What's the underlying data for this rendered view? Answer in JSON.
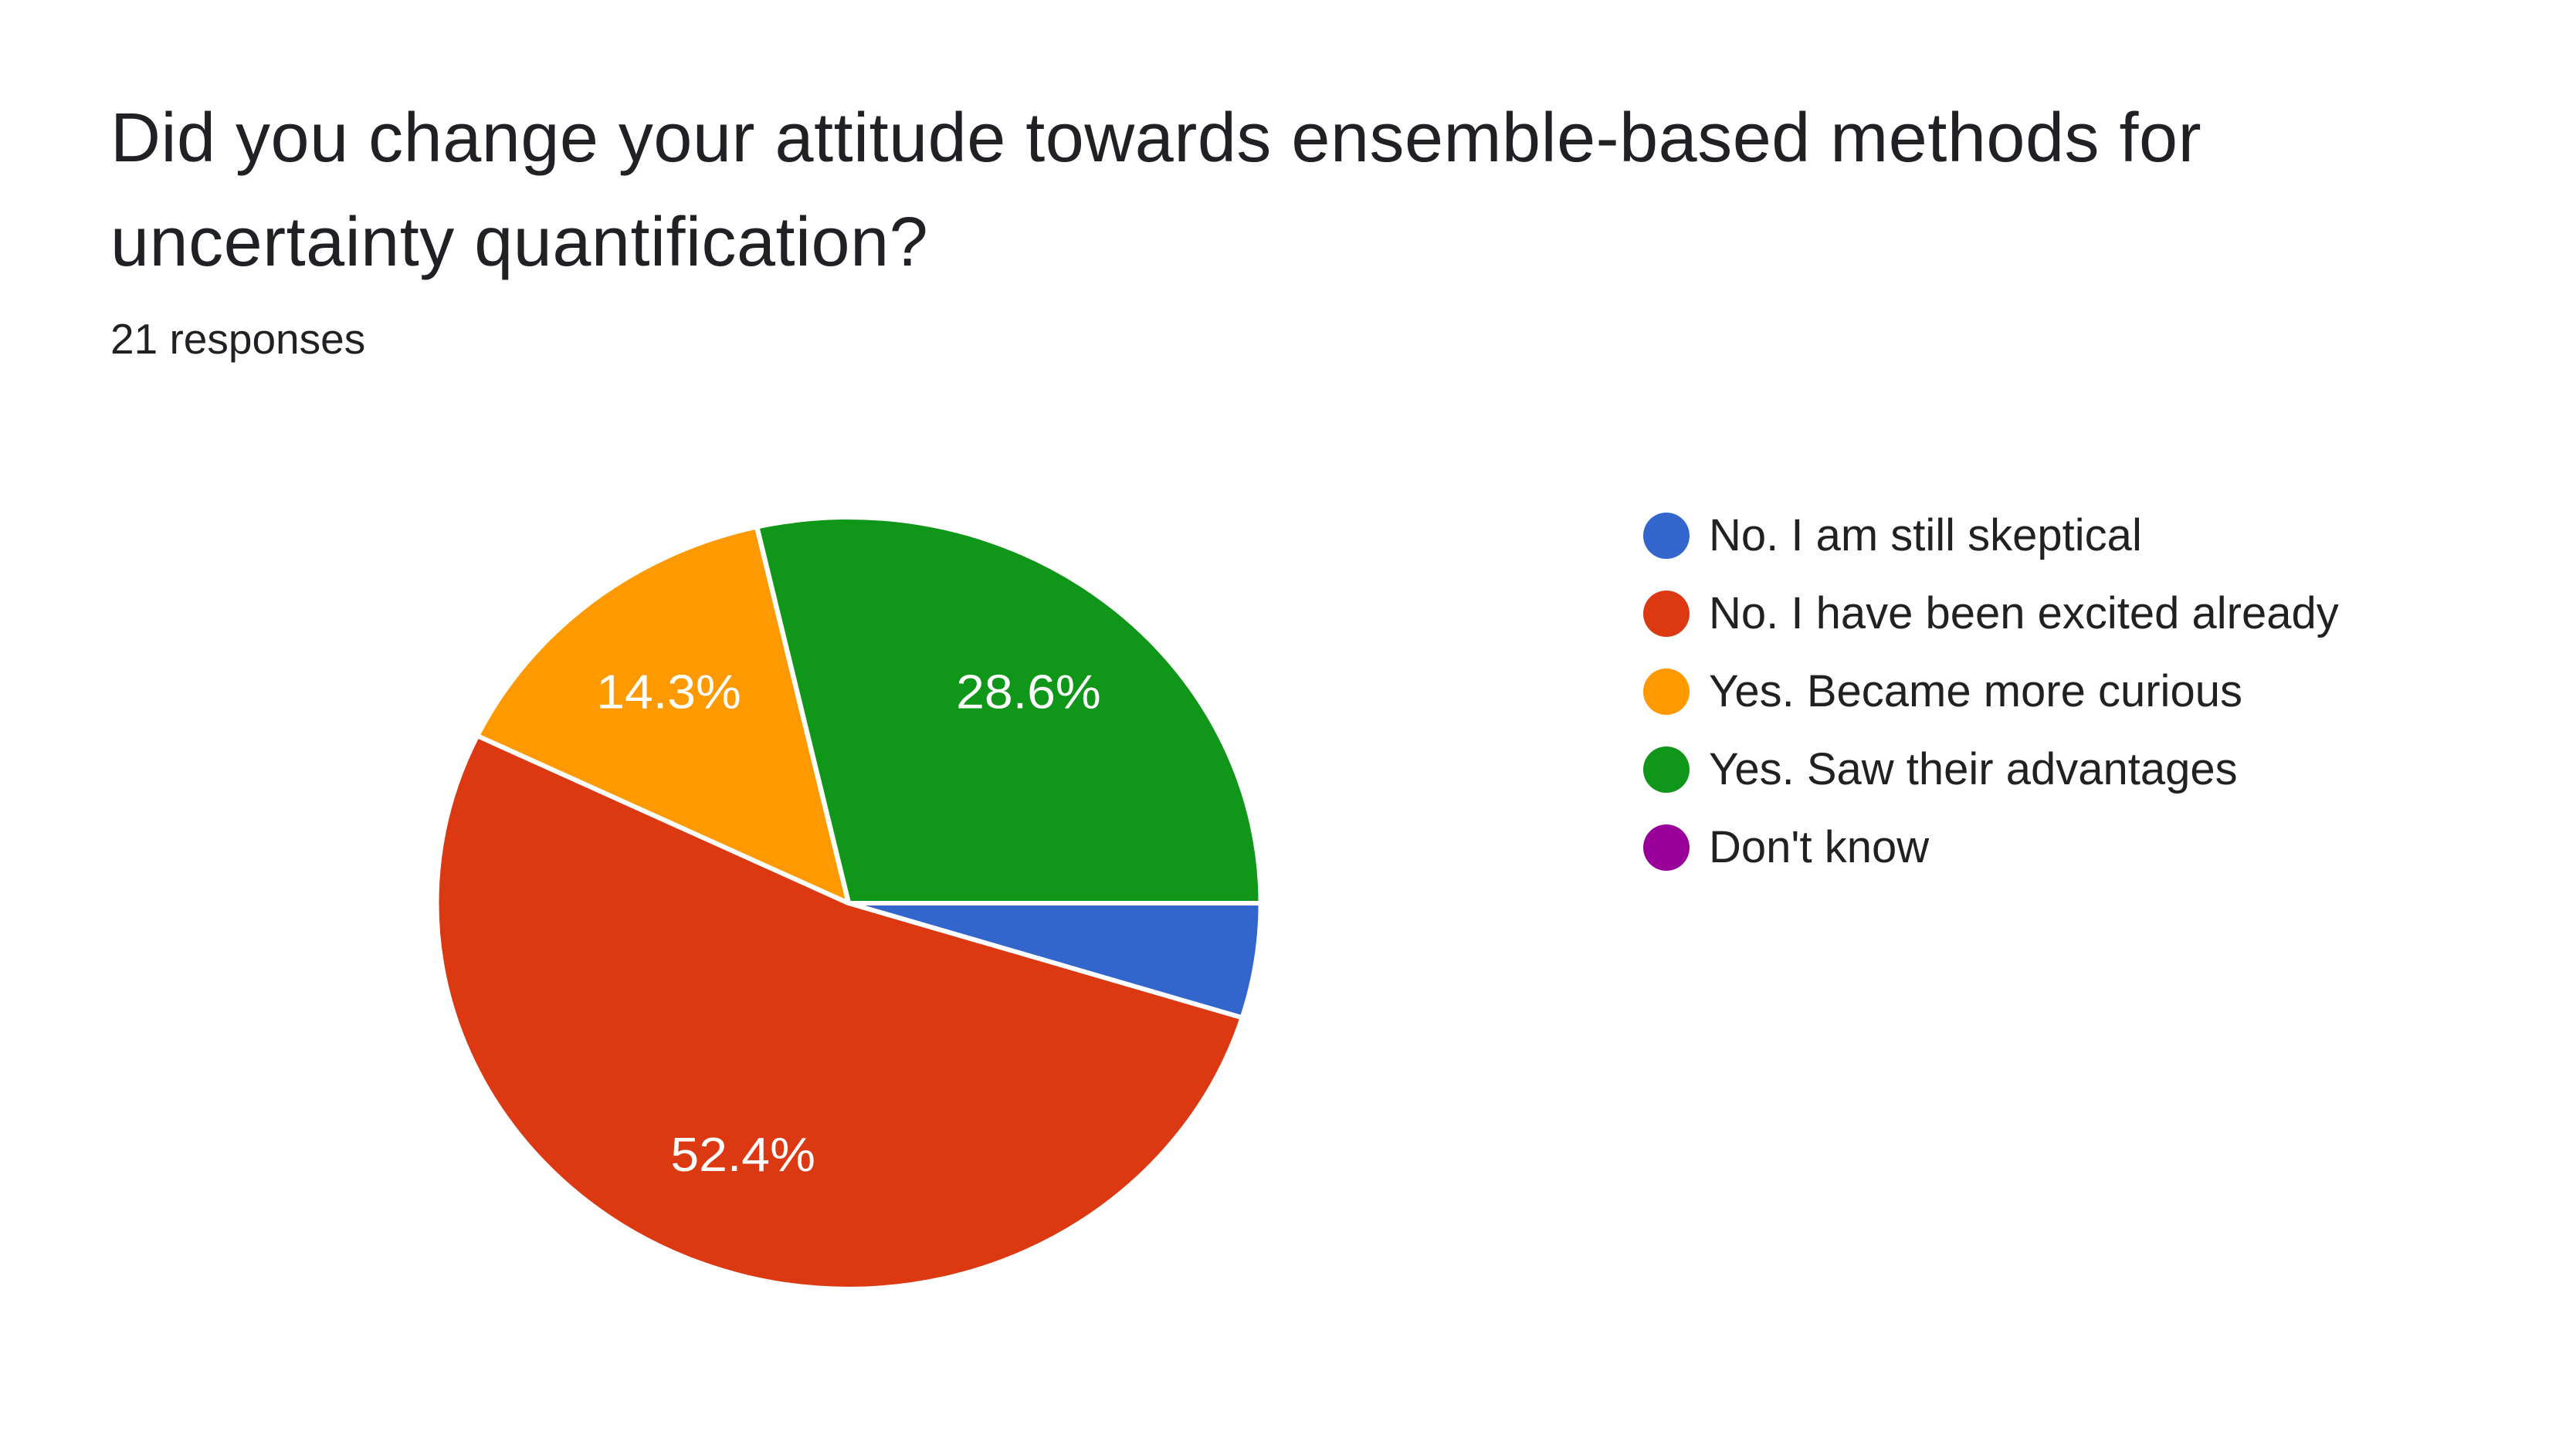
{
  "header": {
    "title_line1": "Did you change your attitude towards ensemble-based methods for",
    "title_line2": "uncertainty quantification?",
    "responses_label": "21 responses"
  },
  "colors": {
    "background": "#ffffff",
    "text": "#202124",
    "slice_label_text": "#ffffff",
    "slice_border": "#ffffff"
  },
  "chart_data": {
    "type": "pie",
    "title": "Did you change your attitude towards ensemble-based methods for uncertainty quantification?",
    "responses_label": "21 responses",
    "responses_count": 21,
    "legend_position": "right",
    "start_angle_deg_from_east": 0,
    "direction": "clockwise",
    "slices": [
      {
        "label": "No. I am still skeptical",
        "percent": 4.8,
        "color": "#3366CC",
        "percent_label": ""
      },
      {
        "label": "No. I have been excited already",
        "percent": 52.4,
        "color": "#DC3912",
        "percent_label": "52.4%"
      },
      {
        "label": "Yes. Became more curious",
        "percent": 14.3,
        "color": "#FF9900",
        "percent_label": "14.3%"
      },
      {
        "label": "Yes. Saw their advantages",
        "percent": 28.6,
        "color": "#109618",
        "percent_label": "28.6%"
      },
      {
        "label": "Don't know",
        "percent": 0,
        "color": "#990099",
        "percent_label": ""
      }
    ]
  }
}
